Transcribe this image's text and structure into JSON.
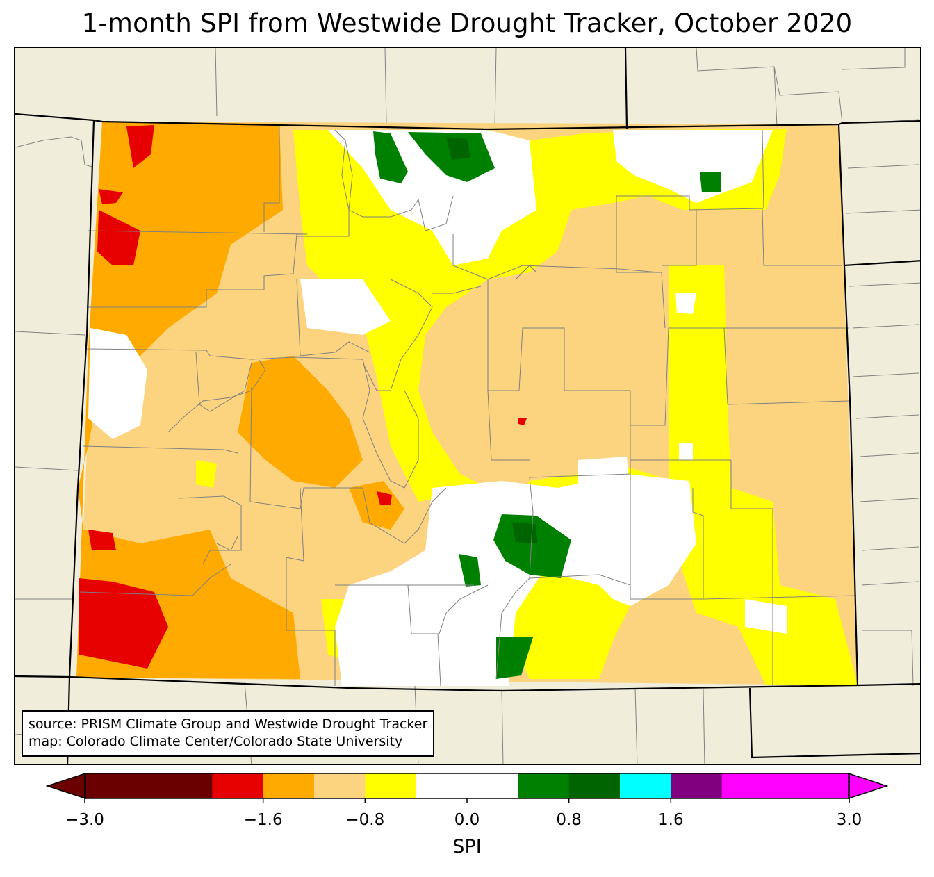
{
  "title": "1-month SPI from Westwide Drought Tracker, October 2020",
  "source_lines": [
    "source: PRISM Climate Group and Westwide Drought Tracker",
    "map: Colorado Climate Center/Colorado State University"
  ],
  "colorbar": {
    "label": "SPI",
    "min": -3.0,
    "max": 3.0,
    "tick_values": [
      -3.0,
      -1.6,
      -0.8,
      0.0,
      0.8,
      1.6,
      3.0
    ],
    "tick_labels": [
      "−3.0",
      "−1.6",
      "−0.8",
      "0.0",
      "0.8",
      "1.6",
      "3.0"
    ],
    "under_color": "#6b0000",
    "over_color": "#ff00ff",
    "bins": [
      {
        "from": -3.0,
        "to": -2.0,
        "color": "#6b0000"
      },
      {
        "from": -2.0,
        "to": -1.6,
        "color": "#e60000"
      },
      {
        "from": -1.6,
        "to": -1.2,
        "color": "#ffaa00"
      },
      {
        "from": -1.2,
        "to": -0.8,
        "color": "#fcd37f"
      },
      {
        "from": -0.8,
        "to": -0.4,
        "color": "#ffff00"
      },
      {
        "from": -0.4,
        "to": 0.4,
        "color": "#ffffff"
      },
      {
        "from": 0.4,
        "to": 0.8,
        "color": "#008000"
      },
      {
        "from": 0.8,
        "to": 1.2,
        "color": "#006400"
      },
      {
        "from": 1.2,
        "to": 1.6,
        "color": "#00ffff"
      },
      {
        "from": 1.6,
        "to": 2.0,
        "color": "#800080"
      },
      {
        "from": 2.0,
        "to": 3.0,
        "color": "#ff00ff"
      }
    ]
  },
  "map_colors": {
    "land": "#f0eedb",
    "county_lines": "#808080",
    "state_lines": "#000000"
  }
}
